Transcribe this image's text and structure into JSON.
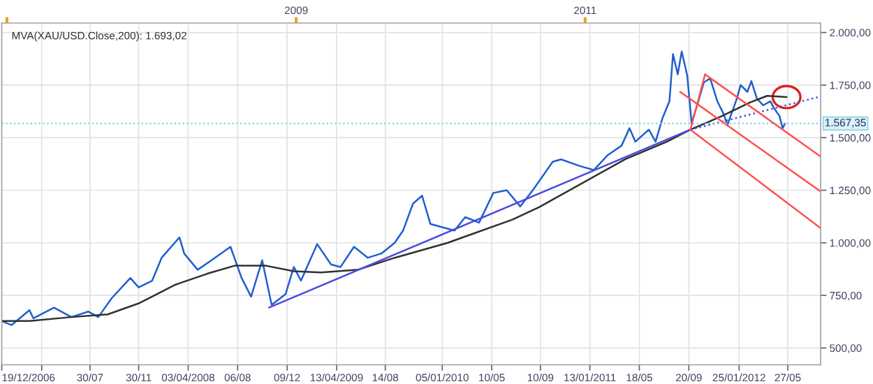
{
  "chart_data": {
    "type": "line",
    "annotations": [
      "MVA(XAU/USD.Close,200): 1.693,02"
    ],
    "series": [
      {
        "color": "#1f5fd0",
        "x": [
          "2006-12-19",
          "2007-01-13",
          "2007-02-27",
          "2007-03-09",
          "2007-04-30",
          "2007-06-13",
          "2007-07-26",
          "2007-08-20",
          "2007-09-23",
          "2007-11-09",
          "2007-11-30",
          "2008-01-03",
          "2008-01-27",
          "2008-03-12",
          "2008-03-24",
          "2008-04-27",
          "2008-06-01",
          "2008-07-19",
          "2008-08-16",
          "2008-09-09",
          "2008-10-07",
          "2008-10-31",
          "2008-12-05",
          "2008-12-26",
          "2009-01-13",
          "2009-02-23",
          "2009-03-30",
          "2009-04-23",
          "2009-05-27",
          "2009-07-01",
          "2009-08-04",
          "2009-09-07",
          "2009-09-28",
          "2009-10-23",
          "2009-11-15",
          "2009-12-06",
          "2010-02-05",
          "2010-03-04",
          "2010-04-08",
          "2010-05-14",
          "2010-06-17",
          "2010-07-21",
          "2010-08-24",
          "2010-10-11",
          "2010-11-01",
          "2010-12-19",
          "2011-01-23",
          "2011-02-27",
          "2011-04-03",
          "2011-04-23",
          "2011-05-08",
          "2011-06-11",
          "2011-06-28",
          "2011-07-15",
          "2011-08-02",
          "2011-08-11",
          "2011-08-23",
          "2011-09-02",
          "2011-09-16",
          "2011-09-27",
          "2011-10-11",
          "2011-10-28",
          "2011-11-13",
          "2011-12-01",
          "2011-12-18",
          "2011-12-26",
          "2012-01-17",
          "2012-01-29",
          "2012-02-15",
          "2012-02-25",
          "2012-03-10",
          "2012-03-26",
          "2012-04-13",
          "2012-04-22",
          "2012-05-06",
          "2012-05-14",
          "2012-05-20"
        ],
        "values": [
          628,
          609,
          680,
          641,
          692,
          647,
          673,
          647,
          737,
          833,
          788,
          820,
          929,
          1026,
          949,
          872,
          917,
          981,
          833,
          744,
          917,
          705,
          756,
          885,
          820,
          994,
          897,
          885,
          981,
          929,
          949,
          1000,
          1058,
          1186,
          1224,
          1090,
          1058,
          1122,
          1096,
          1237,
          1250,
          1173,
          1256,
          1385,
          1397,
          1365,
          1346,
          1417,
          1462,
          1545,
          1481,
          1538,
          1481,
          1590,
          1673,
          1897,
          1801,
          1910,
          1795,
          1570,
          1654,
          1763,
          1782,
          1673,
          1609,
          1558,
          1673,
          1750,
          1718,
          1769,
          1686,
          1654,
          1673,
          1641,
          1603,
          1545,
          1567
        ]
      },
      {
        "color": "#303030",
        "x": [
          "2006-12-19",
          "2007-02-27",
          "2007-06-13",
          "2007-09-13",
          "2007-11-30",
          "2008-03-02",
          "2008-05-21",
          "2008-07-29",
          "2008-10-17",
          "2008-12-26",
          "2009-03-05",
          "2009-06-06",
          "2009-09-07",
          "2010-01-19",
          "2010-03-04",
          "2010-07-01",
          "2010-09-07",
          "2011-04-12",
          "2011-07-27",
          "2011-09-24",
          "2011-12-12",
          "2012-02-21",
          "2012-04-05",
          "2012-05-24"
        ],
        "values": [
          628,
          628,
          647,
          660,
          712,
          801,
          853,
          891,
          891,
          865,
          859,
          872,
          929,
          1000,
          1030,
          1110,
          1170,
          1397,
          1481,
          1538,
          1602,
          1667,
          1699,
          1693
        ]
      },
      {
        "color": "#4a4ae0",
        "x": [
          "2008-10-24",
          "2011-09-24"
        ],
        "values": [
          692,
          1538
        ]
      },
      {
        "color": "#4a4ae0",
        "line_style": "dotted",
        "x": [
          "2011-09-24",
          "2012-08-18"
        ],
        "values": [
          1538,
          1696
        ]
      },
      {
        "color": "#ff5050",
        "x": [
          "2011-10-31",
          "2012-08-18"
        ],
        "values": [
          1801,
          1410
        ]
      },
      {
        "color": "#ff5050",
        "x": [
          "2011-08-29",
          "2012-08-18"
        ],
        "values": [
          1718,
          1244
        ]
      },
      {
        "color": "#ff5050",
        "x": [
          "2011-09-24",
          "2012-08-18"
        ],
        "values": [
          1538,
          1070
        ]
      },
      {
        "color": "#ff5050",
        "x": [
          "2011-10-31",
          "2011-09-24"
        ],
        "values": [
          1801,
          1538
        ]
      }
    ],
    "xlim": [
      "2006-12-19",
      "2012-08-18"
    ],
    "xticks": [
      {
        "value": "2006-12-19",
        "label": "19/12/2006"
      },
      {
        "value": "2007-03-30",
        "label": null
      },
      {
        "value": "2007-07-30",
        "label": "30/07"
      },
      {
        "value": "2007-11-30",
        "label": "30/11"
      },
      {
        "value": "2008-04-03",
        "label": "03/04/2008"
      },
      {
        "value": "2008-08-06",
        "label": "06/08"
      },
      {
        "value": "2008-12-09",
        "label": "09/12"
      },
      {
        "value": "2009-04-13",
        "label": "13/04/2009"
      },
      {
        "value": "2009-08-14",
        "label": "14/08"
      },
      {
        "value": "2010-01-05",
        "label": "05/01/2010"
      },
      {
        "value": "2010-05-10",
        "label": "10/05"
      },
      {
        "value": "2010-09-10",
        "label": "10/09"
      },
      {
        "value": "2011-01-13",
        "label": "13/01/2011"
      },
      {
        "value": "2011-05-18",
        "label": "18/05"
      },
      {
        "value": "2011-09-20",
        "label": "20/09"
      },
      {
        "value": "2012-01-25",
        "label": "25/01/2012"
      },
      {
        "value": "2012-05-27",
        "label": "27/05"
      }
    ],
    "x2lim": [
      "2006-12-19",
      "2012-08-18"
    ],
    "x2ticks": [
      {
        "value": "2007-01-01",
        "label": null
      },
      {
        "value": "2009-01-01",
        "label": "2009"
      },
      {
        "value": "2011-01-01",
        "label": "2011"
      }
    ],
    "ylim": [
      420,
      2045
    ],
    "yticks": [
      {
        "value": 500,
        "label": "500,00"
      },
      {
        "value": 750,
        "label": "750,00"
      },
      {
        "value": 1000,
        "label": "1.000,00"
      },
      {
        "value": 1250,
        "label": "1.250,00"
      },
      {
        "value": 1500,
        "label": "1.500,00"
      },
      {
        "value": 1750,
        "label": "1.750,00"
      },
      {
        "value": 2000,
        "label": "2.000,00"
      }
    ],
    "ref_lines": [
      {
        "axis": "y",
        "value": 1567.35,
        "label": "1.567,35",
        "color": "#7fd0e0",
        "line_style": "dotted"
      }
    ],
    "grid": true,
    "legend": false
  }
}
